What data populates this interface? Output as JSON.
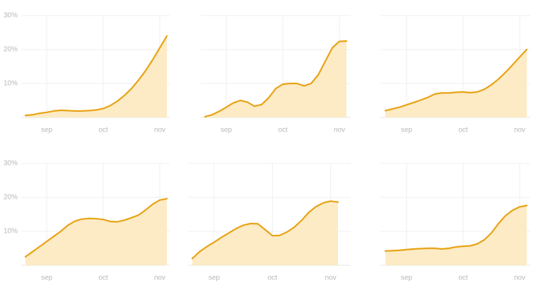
{
  "chart_data": [
    {
      "type": "area",
      "color": "#e8a317",
      "fill": "#fcebc4",
      "categories": [
        null,
        null,
        null,
        "sep",
        null,
        null,
        null,
        null,
        null,
        null,
        null,
        "oct",
        null,
        null,
        null,
        null,
        null,
        null,
        null,
        "nov",
        null
      ],
      "values": [
        0.6,
        0.8,
        1.2,
        1.5,
        1.9,
        2.1,
        2.0,
        1.9,
        1.9,
        2.0,
        2.2,
        2.6,
        3.5,
        4.8,
        6.5,
        8.5,
        11,
        13.8,
        17,
        20.5,
        24
      ],
      "ylim": [
        0,
        30
      ],
      "yticks": [
        {
          "value": 10,
          "label": "10%"
        },
        {
          "value": 20,
          "label": "20%"
        },
        {
          "value": 30,
          "label": "30%"
        }
      ]
    },
    {
      "type": "area",
      "color": "#e8a317",
      "fill": "#fcebc4",
      "categories": [
        null,
        null,
        null,
        "sep",
        null,
        null,
        null,
        null,
        null,
        null,
        null,
        "oct",
        null,
        null,
        null,
        null,
        null,
        null,
        null,
        "nov",
        null
      ],
      "values": [
        0.2,
        0.8,
        1.8,
        3.0,
        4.3,
        5.0,
        4.5,
        3.3,
        3.8,
        5.8,
        8.5,
        9.8,
        10,
        10,
        9.3,
        10,
        12.5,
        16.5,
        20.5,
        22.4,
        22.5
      ],
      "ylim": [
        0,
        30
      ],
      "yticks": [
        10,
        20,
        30
      ]
    },
    {
      "type": "area",
      "color": "#e8a317",
      "fill": "#fcebc4",
      "categories": [
        null,
        null,
        null,
        "sep",
        null,
        null,
        null,
        null,
        null,
        null,
        null,
        "oct",
        null,
        null,
        null,
        null,
        null,
        null,
        null,
        "nov",
        null
      ],
      "values": [
        2.0,
        2.5,
        3.0,
        3.7,
        4.4,
        5.1,
        5.9,
        6.9,
        7.2,
        7.2,
        7.4,
        7.5,
        7.3,
        7.5,
        8.3,
        9.6,
        11.3,
        13.3,
        15.5,
        17.8,
        20.0
      ],
      "ylim": [
        0,
        30
      ],
      "yticks": [
        10,
        20,
        30
      ]
    },
    {
      "type": "area",
      "color": "#e8a317",
      "fill": "#fcebc4",
      "categories": [
        null,
        null,
        null,
        "sep",
        null,
        null,
        null,
        null,
        null,
        null,
        null,
        "oct",
        null,
        null,
        null,
        null,
        null,
        null,
        null,
        "nov",
        null
      ],
      "values": [
        2.5,
        4.0,
        5.5,
        7.0,
        8.5,
        10.0,
        11.8,
        13.0,
        13.6,
        13.8,
        13.7,
        13.5,
        12.9,
        12.8,
        13.3,
        14.0,
        14.8,
        16.3,
        18.0,
        19.2,
        19.6
      ],
      "ylim": [
        0,
        30
      ],
      "yticks": [
        {
          "value": 10,
          "label": "10%"
        },
        {
          "value": 20,
          "label": "20%"
        },
        {
          "value": 30,
          "label": "30%"
        }
      ]
    },
    {
      "type": "area",
      "color": "#e8a317",
      "fill": "#fcebc4",
      "categories": [
        null,
        null,
        null,
        "sep",
        null,
        null,
        null,
        null,
        null,
        null,
        null,
        "oct",
        null,
        null,
        null,
        null,
        null,
        null,
        null,
        "nov",
        null
      ],
      "values": [
        2.0,
        4.0,
        5.5,
        6.8,
        8.2,
        9.5,
        10.8,
        11.8,
        12.3,
        12.2,
        10.5,
        8.7,
        8.8,
        9.8,
        11.2,
        13.2,
        15.6,
        17.3,
        18.4,
        18.9,
        18.6
      ],
      "ylim": [
        0,
        30
      ],
      "yticks": [
        10,
        20,
        30
      ]
    },
    {
      "type": "area",
      "color": "#e8a317",
      "fill": "#fcebc4",
      "categories": [
        null,
        null,
        null,
        "sep",
        null,
        null,
        null,
        null,
        null,
        null,
        null,
        "oct",
        null,
        null,
        null,
        null,
        null,
        null,
        null,
        "nov",
        null
      ],
      "values": [
        4.2,
        4.3,
        4.4,
        4.6,
        4.8,
        4.9,
        5.0,
        5.0,
        4.8,
        5.0,
        5.4,
        5.6,
        5.7,
        6.3,
        7.5,
        9.5,
        12.3,
        14.6,
        16.2,
        17.2,
        17.6
      ],
      "ylim": [
        0,
        30
      ],
      "yticks": [
        10,
        20,
        30
      ]
    }
  ]
}
